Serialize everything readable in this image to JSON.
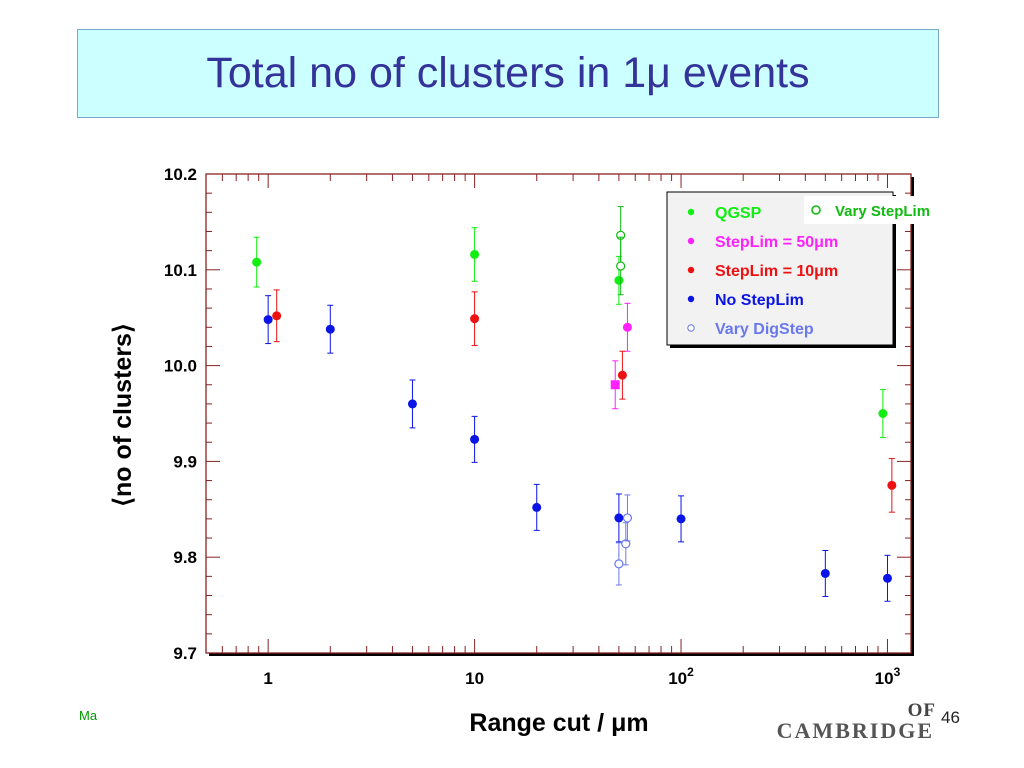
{
  "slide": {
    "title": "Total no of clusters in 1μ events",
    "footer_left": "Ma",
    "page_number": "46",
    "logo_line1": "OF",
    "logo_line2": "CAMBRIDGE"
  },
  "chart_data": {
    "type": "scatter",
    "title": "",
    "xlabel": "Range cut / μm",
    "ylabel": "⟨no of clusters⟩",
    "x_scale": "log",
    "xlim": [
      0.5,
      1300
    ],
    "ylim": [
      9.7,
      10.2
    ],
    "y_ticks": [
      9.7,
      9.8,
      9.9,
      10.0,
      10.1,
      10.2
    ],
    "y_tick_labels": [
      "9.7",
      "9.8",
      "9.9",
      "10.0",
      "10.1",
      "10.2"
    ],
    "x_ticks": [
      1,
      10,
      100,
      1000
    ],
    "x_tick_labels": [
      {
        "base": "1",
        "exp": ""
      },
      {
        "base": "10",
        "exp": ""
      },
      {
        "base": "10",
        "exp": "2"
      },
      {
        "base": "10",
        "exp": "3"
      }
    ],
    "grid": false,
    "legend_position": "top-right",
    "series": [
      {
        "name": "QGSP",
        "color": "#11ee11",
        "marker": "filled-circle",
        "points": [
          {
            "x": 0.88,
            "y": 10.108,
            "err": 0.026
          },
          {
            "x": 10,
            "y": 10.116,
            "err": 0.028
          },
          {
            "x": 50,
            "y": 10.089,
            "err": 0.025
          },
          {
            "x": 950,
            "y": 9.95,
            "err": 0.025
          }
        ]
      },
      {
        "name": "Vary StepLim",
        "color": "#11bb11",
        "marker": "open-circle",
        "points": [
          {
            "x": 51,
            "y": 10.136,
            "err": 0.03
          },
          {
            "x": 51,
            "y": 10.104,
            "err": 0.03
          }
        ]
      },
      {
        "name": "StepLim = 50μm",
        "color": "#ff22ff",
        "marker": "filled-circle",
        "points": [
          {
            "x": 48,
            "y": 9.98,
            "err": 0.025,
            "marker": "filled-square"
          },
          {
            "x": 55,
            "y": 10.04,
            "err": 0.025
          }
        ]
      },
      {
        "name": "StepLim = 10μm",
        "color": "#ee1111",
        "marker": "filled-circle",
        "points": [
          {
            "x": 1.1,
            "y": 10.052,
            "err": 0.027
          },
          {
            "x": 10,
            "y": 10.049,
            "err": 0.028
          },
          {
            "x": 52,
            "y": 9.99,
            "err": 0.025
          },
          {
            "x": 1050,
            "y": 9.875,
            "err": 0.028
          }
        ]
      },
      {
        "name": "No StepLim",
        "color": "#0a14e6",
        "marker": "filled-circle",
        "points": [
          {
            "x": 1,
            "y": 10.048,
            "err": 0.025
          },
          {
            "x": 2,
            "y": 10.038,
            "err": 0.025
          },
          {
            "x": 5,
            "y": 9.96,
            "err": 0.025
          },
          {
            "x": 10,
            "y": 9.923,
            "err": 0.024
          },
          {
            "x": 20,
            "y": 9.852,
            "err": 0.024
          },
          {
            "x": 50,
            "y": 9.841,
            "err": 0.025
          },
          {
            "x": 100,
            "y": 9.84,
            "err": 0.024
          },
          {
            "x": 500,
            "y": 9.783,
            "err": 0.024
          },
          {
            "x": 1000,
            "y": 9.778,
            "err": 0.024
          }
        ]
      },
      {
        "name": "Vary DigStep",
        "color": "#6a78ee",
        "marker": "open-circle",
        "points": [
          {
            "x": 50,
            "y": 9.793,
            "err": 0.022
          },
          {
            "x": 54,
            "y": 9.814,
            "err": 0.022
          },
          {
            "x": 55,
            "y": 9.841,
            "err": 0.024
          }
        ]
      }
    ]
  }
}
